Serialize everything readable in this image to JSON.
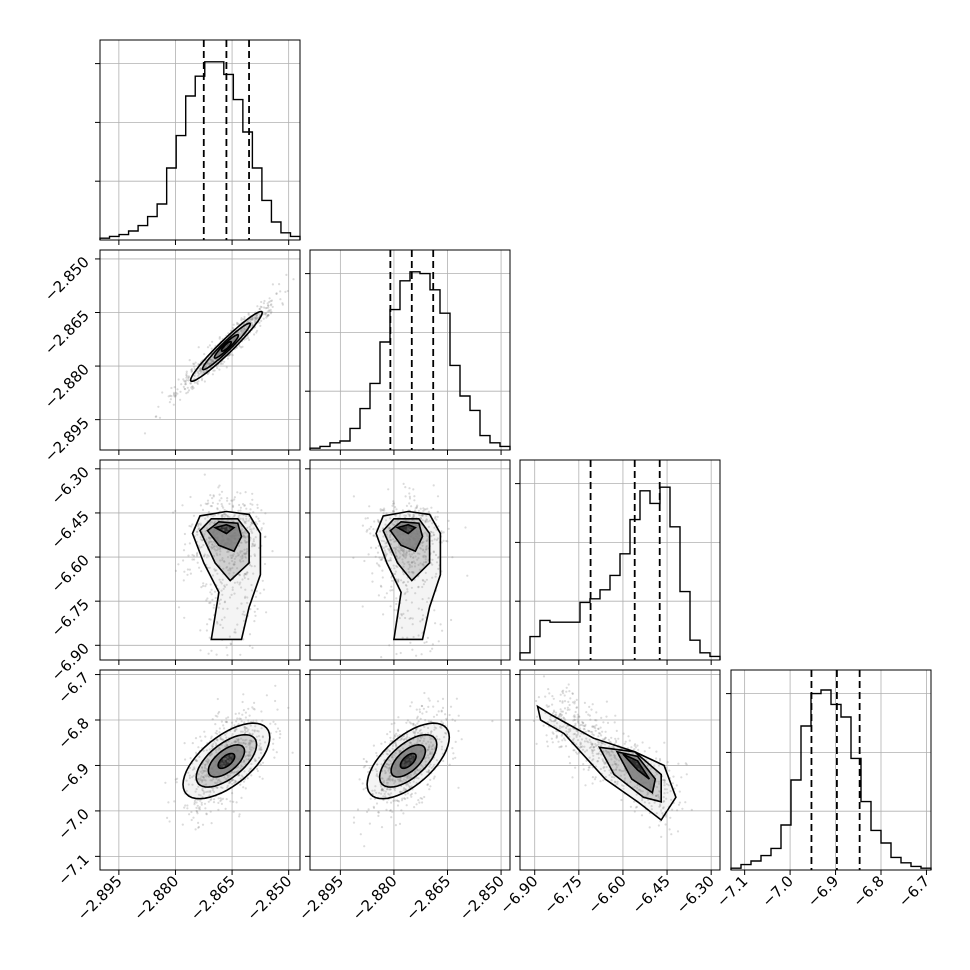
{
  "chart_data": {
    "type": "corner",
    "n_params": 4,
    "grid": true,
    "parameters": [
      {
        "index": 0,
        "range": [
          -2.9,
          -2.847
        ],
        "ticks": [
          -2.895,
          -2.88,
          -2.865,
          -2.85
        ],
        "tick_labels": [
          "−2.895",
          "−2.880",
          "−2.865",
          "−2.850"
        ],
        "mean": -2.8665,
        "sd": 0.0055,
        "quantiles": [
          -2.8725,
          -2.8665,
          -2.8605
        ]
      },
      {
        "index": 1,
        "range": [
          -2.9035,
          -2.8475
        ],
        "ticks": [
          -2.895,
          -2.88,
          -2.865,
          -2.85
        ],
        "tick_labels": [
          "−2.895",
          "−2.880",
          "−2.865",
          "−2.850"
        ],
        "mean": -2.875,
        "sd": 0.0055,
        "quantiles": [
          -2.881,
          -2.875,
          -2.869
        ]
      },
      {
        "index": 2,
        "range": [
          -6.95,
          -6.27
        ],
        "ticks": [
          -6.9,
          -6.75,
          -6.6,
          -6.45,
          -6.3
        ],
        "tick_labels": [
          "−6.90",
          "−6.75",
          "−6.60",
          "−6.45",
          "−6.30"
        ],
        "mean": -6.55,
        "sd": 0.1,
        "quantiles": [
          -6.71,
          -6.56,
          -6.475
        ]
      },
      {
        "index": 3,
        "range": [
          -7.13,
          -6.69
        ],
        "ticks": [
          -7.1,
          -7.0,
          -6.9,
          -6.8,
          -6.7
        ],
        "tick_labels": [
          "−7.1",
          "−7.0",
          "−6.9",
          "−6.8",
          "−6.7"
        ],
        "mean": -6.897,
        "sd": 0.05,
        "quantiles": [
          -6.953,
          -6.897,
          -6.847
        ]
      }
    ],
    "hist_heights": [
      [
        0.01,
        0.02,
        0.03,
        0.05,
        0.08,
        0.13,
        0.2,
        0.4,
        0.58,
        0.8,
        0.91,
        0.99,
        0.99,
        0.92,
        0.78,
        0.6,
        0.4,
        0.22,
        0.1,
        0.04,
        0.02
      ],
      [
        0.01,
        0.02,
        0.04,
        0.05,
        0.12,
        0.23,
        0.37,
        0.6,
        0.78,
        0.94,
        0.99,
        0.98,
        0.89,
        0.76,
        0.47,
        0.3,
        0.22,
        0.08,
        0.04,
        0.02
      ],
      [
        0.04,
        0.13,
        0.22,
        0.21,
        0.21,
        0.21,
        0.32,
        0.34,
        0.39,
        0.47,
        0.59,
        0.78,
        0.94,
        0.87,
        0.96,
        0.74,
        0.38,
        0.11,
        0.04,
        0.02
      ],
      [
        0.01,
        0.03,
        0.05,
        0.08,
        0.12,
        0.25,
        0.5,
        0.8,
        0.98,
        1.0,
        0.92,
        0.85,
        0.62,
        0.38,
        0.22,
        0.15,
        0.07,
        0.04,
        0.02,
        0.01
      ]
    ],
    "contour_pairs": [
      {
        "row": 1,
        "col": 0,
        "shape": "diagonal-ellipse",
        "correlation": 0.97
      },
      {
        "row": 2,
        "col": 0,
        "shape": "tail-down",
        "mode": [
          -2.866,
          -6.5
        ]
      },
      {
        "row": 2,
        "col": 1,
        "shape": "tail-down",
        "mode": [
          -2.876,
          -6.5
        ]
      },
      {
        "row": 3,
        "col": 0,
        "shape": "ellipse",
        "mode": [
          -2.868,
          -6.89
        ]
      },
      {
        "row": 3,
        "col": 1,
        "shape": "ellipse",
        "mode": [
          -2.877,
          -6.89
        ]
      },
      {
        "row": 3,
        "col": 2,
        "shape": "curved-band",
        "mode": [
          -6.55,
          -6.9
        ]
      }
    ]
  }
}
